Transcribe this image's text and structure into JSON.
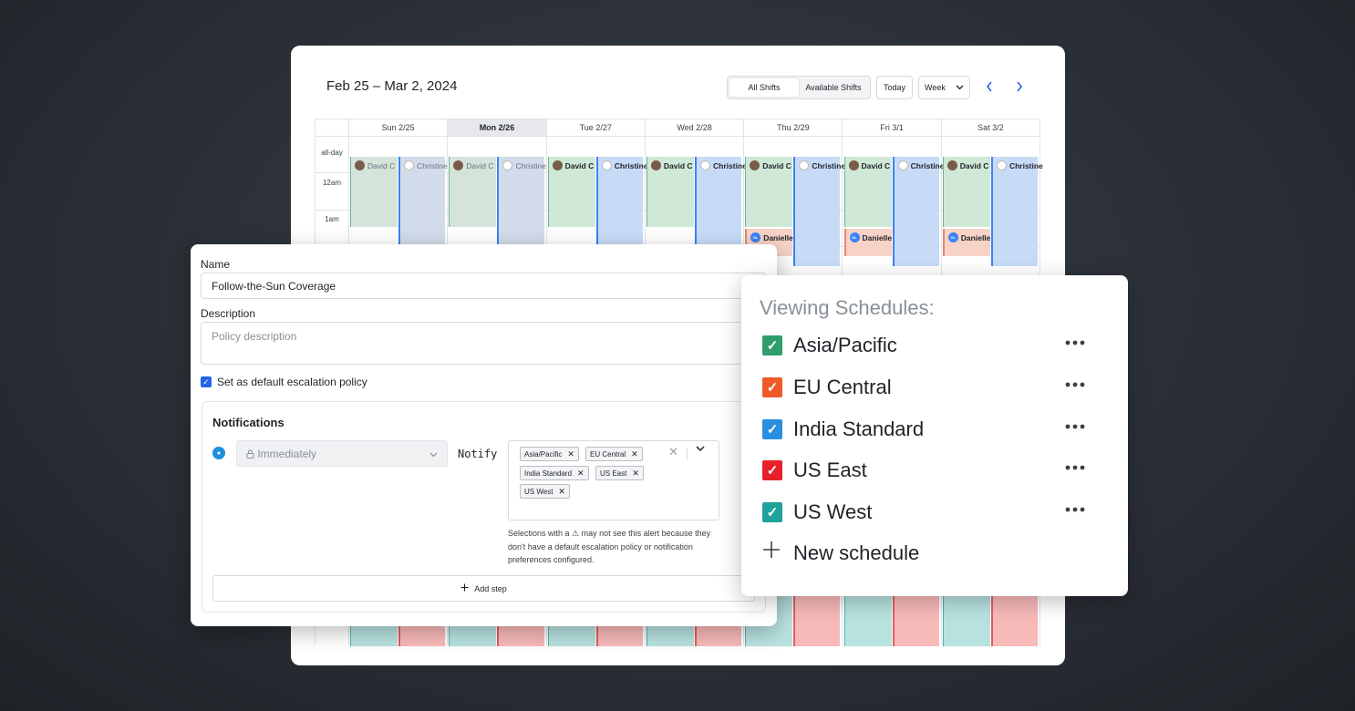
{
  "calendar": {
    "title": "Feb 25 – Mar 2, 2024",
    "view_toggle": [
      "All Shifts",
      "Available Shifts"
    ],
    "today_label": "Today",
    "range_select": "Week",
    "prev_icon": "chevron-left-icon",
    "next_icon": "chevron-right-icon",
    "days": [
      "Sun 2/25",
      "Mon 2/26",
      "Tue 2/27",
      "Wed 2/28",
      "Thu 2/29",
      "Fri 3/1",
      "Sat 3/2"
    ],
    "today_index": 1,
    "time_labels": [
      "all-day",
      "12am",
      "1am"
    ],
    "event_names": {
      "david": "David C",
      "christine": "Christine",
      "danielle": "Danielle"
    },
    "colors": {
      "green_shift": "#cfe8d7",
      "blue_shift": "#c7dbf7",
      "teal_shift": "#b8e2e0",
      "pink_shift": "#f8b9b9",
      "salmon_shift": "#f7d2c6"
    }
  },
  "form": {
    "name_label": "Name",
    "name_value": "Follow-the-Sun Coverage",
    "description_label": "Description",
    "description_placeholder": "Policy description",
    "default_checkbox_label": "Set as default escalation policy",
    "default_checked": true,
    "notifications_title": "Notifications",
    "timing_value": "Immediately",
    "notify_label": "Notify",
    "selected_schedules": [
      "Asia/Pacific",
      "EU Central",
      "India Standard",
      "US East",
      "US West"
    ],
    "warning_note": "Selections with a ⚠ may not see this alert because they don't have a default escalation policy or notification preferences configured.",
    "add_step_label": "Add step"
  },
  "schedules_panel": {
    "title": "Viewing Schedules:",
    "items": [
      {
        "label": "Asia/Pacific",
        "color": "#2f9e6d",
        "checked": true
      },
      {
        "label": "EU Central",
        "color": "#f05a28",
        "checked": true
      },
      {
        "label": "India Standard",
        "color": "#2b8fe0",
        "checked": true
      },
      {
        "label": "US East",
        "color": "#e8202a",
        "checked": true
      },
      {
        "label": "US West",
        "color": "#1fa39a",
        "checked": true
      }
    ],
    "new_schedule_label": "New schedule"
  }
}
